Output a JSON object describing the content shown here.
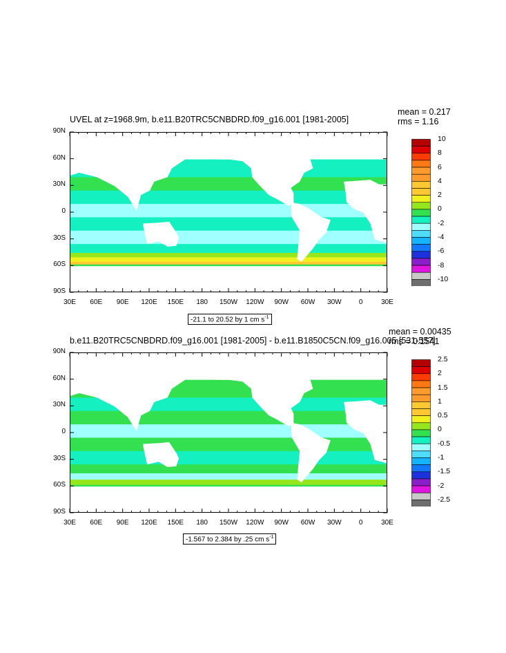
{
  "colors": {
    "scale": [
      "#6e6e6e",
      "#c8c8c8",
      "#e016e0",
      "#8a1ec8",
      "#1e32dc",
      "#1478ff",
      "#14b4ff",
      "#50dcff",
      "#a0ffff",
      "#14f0c0",
      "#32e050",
      "#96e61e",
      "#f0f01e",
      "#ffc832",
      "#ff9b2d",
      "#ff7814",
      "#ff3c00",
      "#dc0000",
      "#b40000"
    ],
    "land": "#ffffff"
  },
  "panels": [
    {
      "title": "UVEL at z=1968.9m, b.e11.B20TRC5CNBDRD.f09_g16.001 [1981-2005]",
      "mean": "mean = 0.217",
      "rms": "rms = 1.16",
      "range_label": "-21.1 to 20.52 by 1 cm s",
      "range_sup": "-1",
      "colorbar_labels": [
        "10",
        "8",
        "6",
        "4",
        "2",
        "0",
        "-2",
        "-4",
        "-6",
        "-8",
        "-10"
      ]
    },
    {
      "title": "b.e11.B20TRC5CNBDRD.f09_g16.001 [1981-2005] - b.e11.B1850C5CN.f09_g16.005 [531-557]",
      "mean": "mean = 0.00435",
      "rms": "rms = 0.1541",
      "range_label": "-1.567 to 2.384 by .25 cm s",
      "range_sup": "-1",
      "colorbar_labels": [
        "2.5",
        "2",
        "1.5",
        "1",
        "0.5",
        "0",
        "-0.5",
        "-1",
        "-1.5",
        "-2",
        "-2.5"
      ]
    }
  ],
  "axes": {
    "lat_labels": [
      "90N",
      "60N",
      "30N",
      "0",
      "30S",
      "60S",
      "90S"
    ],
    "lon_labels": [
      "30E",
      "60E",
      "90E",
      "120E",
      "150E",
      "180",
      "150W",
      "120W",
      "90W",
      "60W",
      "30W",
      "0",
      "30E"
    ]
  },
  "chart_data": [
    {
      "type": "heatmap",
      "title": "UVEL at z=1968.9m, b.e11.B20TRC5CNBDRD.f09_g16.001 [1981-2005]",
      "x_range": [
        30,
        390
      ],
      "y_range": [
        -90,
        90
      ],
      "xlabel": "",
      "ylabel": "",
      "colorbar": {
        "min": -10,
        "max": 10,
        "step": 1,
        "units": "cm s-1"
      },
      "data_min": -21.1,
      "data_max": 20.52,
      "mean": 0.217,
      "rms": 1.16,
      "grid": false
    },
    {
      "type": "heatmap",
      "title": "b.e11.B20TRC5CNBDRD.f09_g16.001 [1981-2005] - b.e11.B1850C5CN.f09_g16.005 [531-557]",
      "x_range": [
        30,
        390
      ],
      "y_range": [
        -90,
        90
      ],
      "xlabel": "",
      "ylabel": "",
      "colorbar": {
        "min": -2.5,
        "max": 2.5,
        "step": 0.25,
        "units": "cm s-1"
      },
      "data_min": -1.567,
      "data_max": 2.384,
      "mean": 0.00435,
      "rms": 0.1541,
      "grid": false
    }
  ]
}
